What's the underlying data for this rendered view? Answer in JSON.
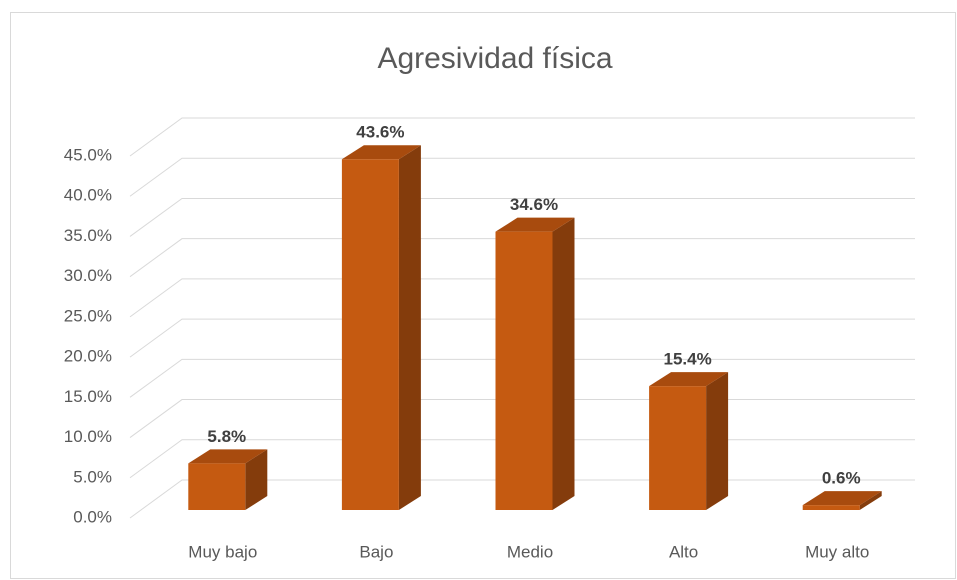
{
  "chart_data": {
    "type": "bar3d",
    "title": "Agresividad física",
    "categories": [
      "Muy bajo",
      "Bajo",
      "Medio",
      "Alto",
      "Muy alto"
    ],
    "values": [
      5.8,
      43.6,
      34.6,
      15.4,
      0.6
    ],
    "value_labels": [
      "5.8%",
      "43.6%",
      "34.6%",
      "15.4%",
      "0.6%"
    ],
    "color": "#c55a11",
    "ylim": [
      0,
      45
    ],
    "yticks": [
      {
        "value": 0,
        "label": "0.0%"
      },
      {
        "value": 5,
        "label": "5.0%"
      },
      {
        "value": 10,
        "label": "10.0%"
      },
      {
        "value": 15,
        "label": "15.0%"
      },
      {
        "value": 20,
        "label": "20.0%"
      },
      {
        "value": 25,
        "label": "25.0%"
      },
      {
        "value": 30,
        "label": "30.0%"
      },
      {
        "value": 35,
        "label": "35.0%"
      },
      {
        "value": 40,
        "label": "40.0%"
      },
      {
        "value": 45,
        "label": "45.0%"
      }
    ],
    "grid": true
  }
}
